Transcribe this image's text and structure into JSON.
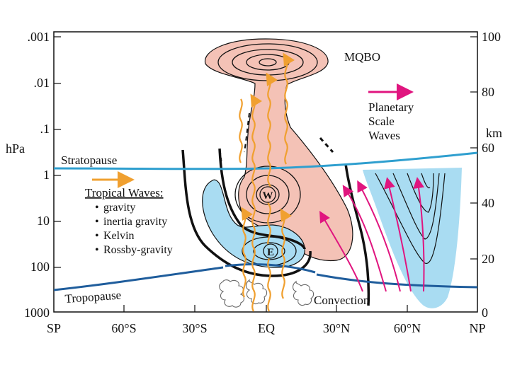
{
  "left_axis": {
    "unit": "hPa",
    "ticks": [
      ".001",
      ".01",
      ".1",
      "1",
      "10",
      "100",
      "1000"
    ]
  },
  "right_axis": {
    "unit": "km",
    "ticks": [
      "100",
      "80",
      "60",
      "40",
      "20",
      "0"
    ]
  },
  "x_axis": {
    "ticks": [
      "SP",
      "60°S",
      "30°S",
      "EQ",
      "30°N",
      "60°N",
      "NP"
    ]
  },
  "labels": {
    "mqbo": "MQBO",
    "planetary_line1": "Planetary",
    "planetary_line2": "Scale",
    "planetary_line3": "Waves",
    "stratopause": "Stratopause",
    "tropopause": "Tropopause",
    "convection": "Convection",
    "westerly": "W",
    "easterly": "E"
  },
  "tropical_waves": {
    "heading": "Tropical Waves:",
    "items": [
      "gravity",
      "inertia gravity",
      "Kelvin",
      "Rossby-gravity"
    ],
    "bullet": "•"
  },
  "colors": {
    "westerly_fill": "#f4c2b6",
    "easterly_fill": "#a9dcf2",
    "stratopause_line": "#2f9fcf",
    "tropopause_line": "#1f5d9c",
    "tropical_wave_arrow": "#f0a030",
    "planetary_wave_arrow": "#e0157f",
    "contour": "#111111"
  }
}
